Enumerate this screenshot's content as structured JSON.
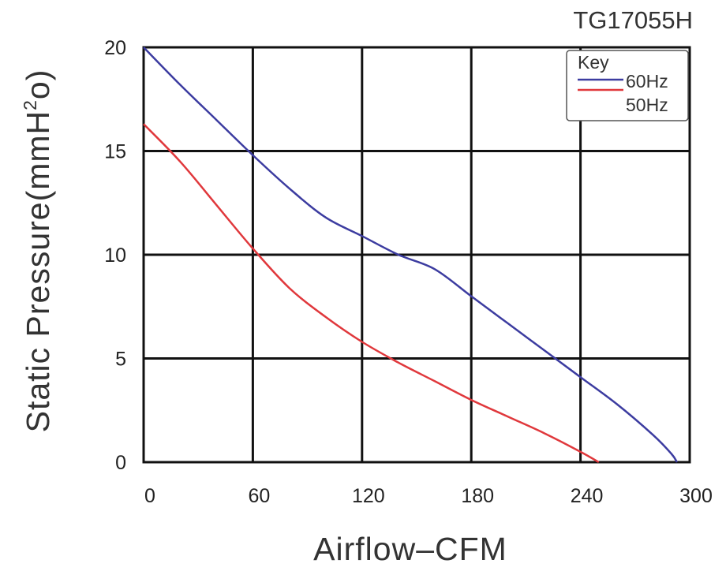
{
  "chart_data": {
    "type": "line",
    "title": "TG17055H",
    "xlabel": "Airflow–CFM",
    "ylabel_main": "Static Pressure(mmH",
    "ylabel_sup": "2",
    "ylabel_tail": "o)",
    "xlim": [
      0,
      300
    ],
    "ylim": [
      0,
      20
    ],
    "x_ticks": [
      "0",
      "60",
      "120",
      "180",
      "240",
      "300"
    ],
    "y_ticks": [
      "0",
      "5",
      "10",
      "15",
      "20"
    ],
    "grid": true,
    "legend": {
      "title": "Key",
      "placement": "top-right"
    },
    "series": [
      {
        "name": "60Hz",
        "color": "#3c3ca0",
        "x": [
          0,
          20,
          40,
          60,
          80,
          100,
          120,
          140,
          160,
          180,
          200,
          220,
          240,
          260,
          280,
          290,
          293
        ],
        "y": [
          20.0,
          18.2,
          16.5,
          14.8,
          13.2,
          11.8,
          10.9,
          10.0,
          9.3,
          8.0,
          6.7,
          5.4,
          4.1,
          2.8,
          1.3,
          0.4,
          0.0
        ]
      },
      {
        "name": "50Hz",
        "color": "#e0383c",
        "x": [
          0,
          20,
          40,
          60,
          80,
          100,
          120,
          140,
          160,
          180,
          200,
          220,
          240,
          250
        ],
        "y": [
          16.3,
          14.5,
          12.4,
          10.3,
          8.4,
          7.0,
          5.8,
          4.8,
          3.9,
          3.0,
          2.2,
          1.4,
          0.5,
          0.0
        ]
      }
    ]
  }
}
